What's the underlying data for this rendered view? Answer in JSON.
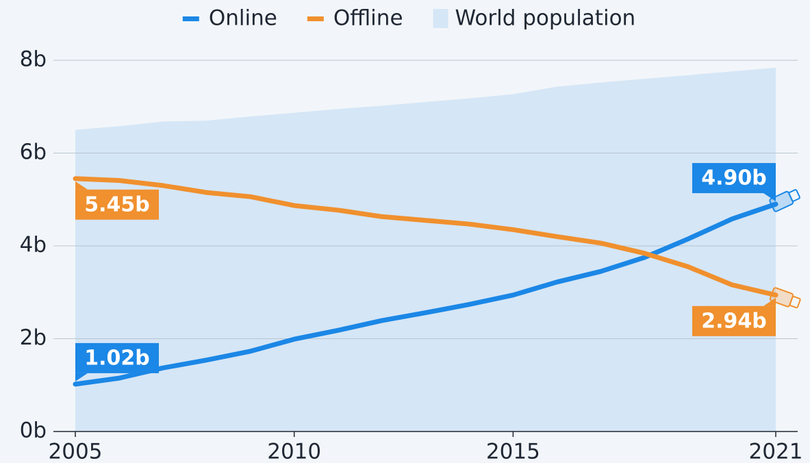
{
  "chart_data": {
    "type": "line",
    "x": [
      2005,
      2006,
      2007,
      2008,
      2009,
      2010,
      2011,
      2012,
      2013,
      2014,
      2015,
      2016,
      2017,
      2018,
      2019,
      2020,
      2021
    ],
    "series": [
      {
        "name": "Online",
        "color": "#1b87e6",
        "values": [
          1.02,
          1.15,
          1.37,
          1.54,
          1.73,
          1.99,
          2.18,
          2.39,
          2.56,
          2.74,
          2.94,
          3.22,
          3.45,
          3.75,
          4.15,
          4.58,
          4.9
        ],
        "value_labels": [
          "1.02b",
          null,
          null,
          null,
          null,
          null,
          null,
          null,
          null,
          null,
          null,
          null,
          null,
          null,
          null,
          null,
          "4.90b"
        ]
      },
      {
        "name": "Offline",
        "color": "#f0902e",
        "values": [
          5.45,
          5.41,
          5.3,
          5.15,
          5.06,
          4.87,
          4.77,
          4.63,
          4.55,
          4.47,
          4.35,
          4.2,
          4.06,
          3.84,
          3.55,
          3.16,
          2.94
        ],
        "value_labels": [
          "5.45b",
          null,
          null,
          null,
          null,
          null,
          null,
          null,
          null,
          null,
          null,
          null,
          null,
          null,
          null,
          null,
          "2.94b"
        ]
      },
      {
        "name": "World population",
        "color": "#d5e6f6",
        "area": true,
        "values": [
          6.5,
          6.58,
          6.68,
          6.7,
          6.79,
          6.87,
          6.95,
          7.02,
          7.1,
          7.18,
          7.27,
          7.43,
          7.52,
          7.6,
          7.68,
          7.76,
          7.84
        ]
      }
    ],
    "xlim": [
      2005,
      2021
    ],
    "xticks": [
      2005,
      2010,
      2015,
      2021
    ],
    "ylim": [
      0,
      8
    ],
    "yticks": [
      {
        "value": 0,
        "label": "0b"
      },
      {
        "value": 2,
        "label": "2b"
      },
      {
        "value": 4,
        "label": "4b"
      },
      {
        "value": 6,
        "label": "6b"
      },
      {
        "value": 8,
        "label": "8b"
      }
    ],
    "grid": true,
    "legend": "top"
  }
}
